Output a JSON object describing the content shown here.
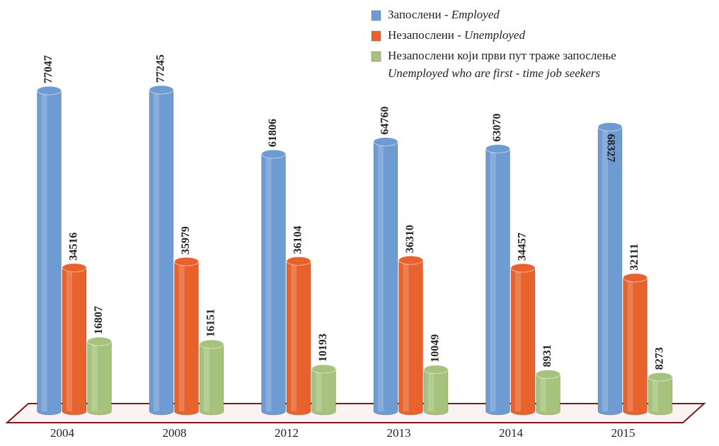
{
  "chart_data": {
    "type": "bar",
    "categories": [
      "2004",
      "2008",
      "2012",
      "2013",
      "2014",
      "2015"
    ],
    "series": [
      {
        "name": "Запослени - Employed",
        "color": "#6f9bd3",
        "values": [
          77047,
          77245,
          61806,
          64760,
          63070,
          68327
        ]
      },
      {
        "name": "Незапослени - Unemployed",
        "color": "#e8622e",
        "values": [
          34516,
          35979,
          36104,
          36310,
          34457,
          32111
        ]
      },
      {
        "name": "Незапослени који први пут траже запослење\nUnemployed who are first - time job seekers",
        "color": "#a6c27c",
        "values": [
          16807,
          16151,
          10193,
          10049,
          8931,
          8273
        ]
      }
    ],
    "legend": "top-right"
  }
}
